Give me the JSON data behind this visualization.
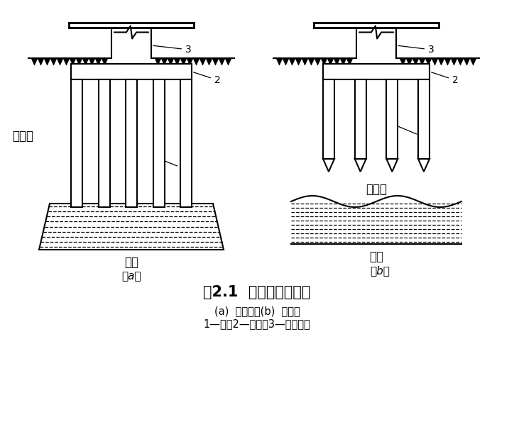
{
  "title": "图2.1  端承桩与摩擦桩",
  "subtitle1": "(a)  端承桩；(b)  摩擦桩",
  "subtitle2": "1—桩；2—承台；3—上部结构",
  "label_a": "（a）",
  "label_b": "（b）",
  "text_soft_a": "软土层",
  "text_hard_a": "硬层",
  "text_soft_b": "软土层",
  "text_hard_b": "硬层",
  "bg_color": "#ffffff",
  "line_color": "#000000"
}
